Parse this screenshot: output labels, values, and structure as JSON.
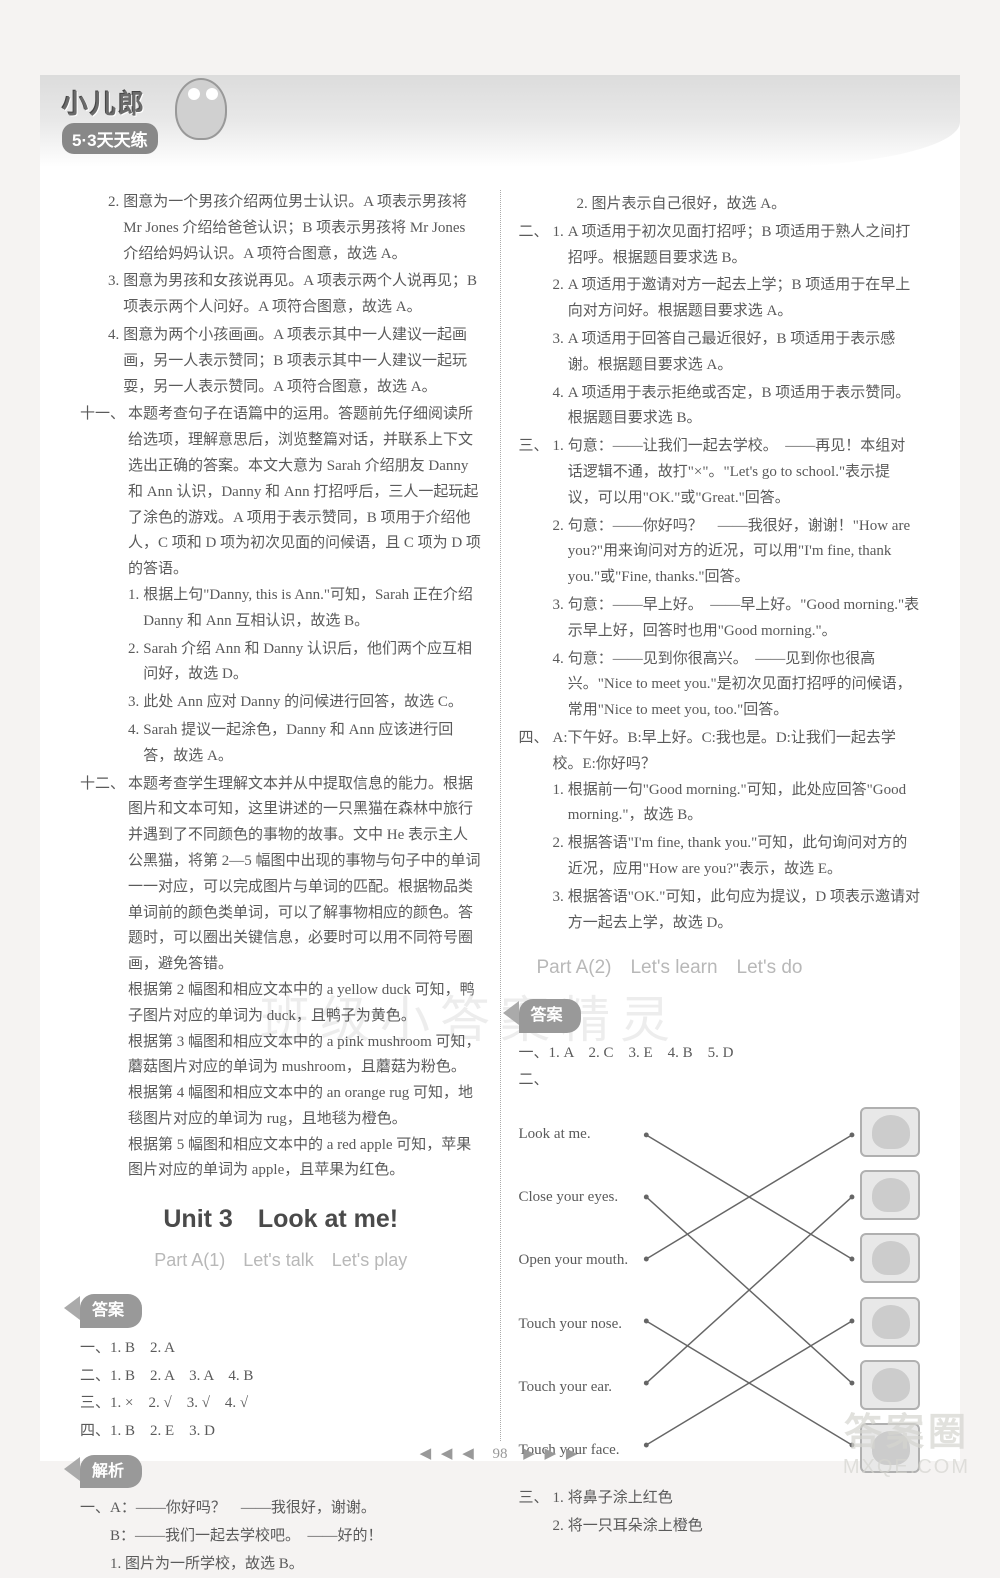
{
  "brand": {
    "top": "小儿郎",
    "bottom": "5·3天天练"
  },
  "page_number": "98",
  "watermark": {
    "main": "答案圈",
    "url": "MXQE.COM",
    "mid": "班级小答案精灵"
  },
  "left_col": {
    "items_first": [
      {
        "n": "2.",
        "t": "图意为一个男孩介绍两位男士认识。A 项表示男孩将 Mr Jones 介绍给爸爸认识；B 项表示男孩将 Mr Jones 介绍给妈妈认识。A 项符合图意，故选 A。"
      },
      {
        "n": "3.",
        "t": "图意为男孩和女孩说再见。A 项表示两个人说再见；B 项表示两个人问好。A 项符合图意，故选 A。"
      },
      {
        "n": "4.",
        "t": "图意为两个小孩画画。A 项表示其中一人建议一起画画，另一人表示赞同；B 项表示其中一人建议一起玩耍，另一人表示赞同。A 项符合图意，故选 A。"
      }
    ],
    "eleven": {
      "label": "十一、",
      "intro": "本题考查句子在语篇中的运用。答题前先仔细阅读所给选项，理解意思后，浏览整篇对话，并联系上下文选出正确的答案。本文大意为 Sarah 介绍朋友 Danny 和 Ann 认识，Danny 和 Ann 打招呼后，三人一起玩起了涂色的游戏。A 项用于表示赞同，B 项用于介绍他人，C 项和 D 项为初次见面的问候语，且 C 项为 D 项的答语。",
      "subs": [
        {
          "n": "1.",
          "t": "根据上句\"Danny, this is Ann.\"可知，Sarah 正在介绍 Danny 和 Ann 互相认识，故选 B。"
        },
        {
          "n": "2.",
          "t": "Sarah 介绍 Ann 和 Danny 认识后，他们两个应互相问好，故选 D。"
        },
        {
          "n": "3.",
          "t": "此处 Ann 应对 Danny 的问候进行回答，故选 C。"
        },
        {
          "n": "4.",
          "t": "Sarah 提议一起涂色，Danny 和 Ann 应该进行回答，故选 A。"
        }
      ]
    },
    "twelve": {
      "label": "十二、",
      "intro": "本题考查学生理解文本并从中提取信息的能力。根据图片和文本可知，这里讲述的一只黑猫在森林中旅行并遇到了不同颜色的事物的故事。文中 He 表示主人公黑猫，将第 2—5 幅图中出现的事物与句子中的单词一一对应，可以完成图片与单词的匹配。根据物品类单词前的颜色类单词，可以了解事物相应的颜色。答题时，可以圈出关键信息，必要时可以用不同符号圈画，避免答错。",
      "paras": [
        "根据第 2 幅图和相应文本中的 a yellow duck 可知，鸭子图片对应的单词为 duck，且鸭子为黄色。",
        "根据第 3 幅图和相应文本中的 a pink mushroom 可知，蘑菇图片对应的单词为 mushroom，且蘑菇为粉色。",
        "根据第 4 幅图和相应文本中的 an orange rug 可知，地毯图片对应的单词为 rug，且地毯为橙色。",
        "根据第 5 幅图和相应文本中的 a red apple 可知，苹果图片对应的单词为 apple，且苹果为红色。"
      ]
    },
    "unit_heading": "Unit 3　Look at me!",
    "part_heading": "Part A(1)　Let's talk　Let's play",
    "pill_answers": "答案",
    "answers": [
      "一、1. B　2. A",
      "二、1. B　2. A　3. A　4. B",
      "三、1. ×　2. √　3. √　4. √",
      "四、1. B　2. E　3. D"
    ],
    "pill_analysis": "解析",
    "analysis": [
      "一、A：——你好吗？　——我很好，谢谢。",
      "　　B：——我们一起去学校吧。　——好的！",
      "　　1. 图片为一所学校，故选 B。"
    ]
  },
  "right_col": {
    "top_line": "　　2. 图片表示自己很好，故选 A。",
    "two": {
      "label": "二、",
      "items": [
        {
          "n": "1.",
          "t": "A 项适用于初次见面打招呼；B 项适用于熟人之间打招呼。根据题目要求选 B。"
        },
        {
          "n": "2.",
          "t": "A 项适用于邀请对方一起去上学；B 项适用于在早上向对方问好。根据题目要求选 A。"
        },
        {
          "n": "3.",
          "t": "A 项适用于回答自己最近很好，B 项适用于表示感谢。根据题目要求选 A。"
        },
        {
          "n": "4.",
          "t": "A 项适用于表示拒绝或否定，B 项适用于表示赞同。根据题目要求选 B。"
        }
      ]
    },
    "three": {
      "label": "三、",
      "items": [
        {
          "n": "1.",
          "t": "句意：——让我们一起去学校。　——再见！本组对话逻辑不通，故打\"×\"。\"Let's go to school.\"表示提议，可以用\"OK.\"或\"Great.\"回答。"
        },
        {
          "n": "2.",
          "t": "句意：——你好吗？　——我很好，谢谢！\"How are you?\"用来询问对方的近况，可以用\"I'm fine, thank you.\"或\"Fine, thanks.\"回答。"
        },
        {
          "n": "3.",
          "t": "句意：——早上好。　——早上好。\"Good morning.\"表示早上好，回答时也用\"Good morning.\"。"
        },
        {
          "n": "4.",
          "t": "句意：——见到你很高兴。　——见到你也很高兴。\"Nice to meet you.\"是初次见面打招呼的问候语，常用\"Nice to meet you, too.\"回答。"
        }
      ]
    },
    "four": {
      "label": "四、",
      "head": "A:下午好。B:早上好。C:我也是。D:让我们一起去学校。E:你好吗？",
      "items": [
        {
          "n": "1.",
          "t": "根据前一句\"Good morning.\"可知，此处应回答\"Good morning.\"，故选 B。"
        },
        {
          "n": "2.",
          "t": "根据答语\"I'm fine, thank you.\"可知，此句询问对方的近况，应用\"How are you?\"表示，故选 E。"
        },
        {
          "n": "3.",
          "t": "根据答语\"OK.\"可知，此句应为提议，D 项表示邀请对方一起去上学，故选 D。"
        }
      ]
    },
    "part_heading": "Part A(2)　Let's learn　Let's do",
    "pill_answers": "答案",
    "answer_line1": "一、1. A　2. C　3. E　4. B　5. D",
    "answer_line2_label": "二、",
    "matching": {
      "left": [
        "Look at me.",
        "Close your eyes.",
        "Open your mouth.",
        "Touch your nose.",
        "Touch your ear.",
        "Touch your face."
      ],
      "edges": [
        [
          0,
          2
        ],
        [
          1,
          4
        ],
        [
          2,
          0
        ],
        [
          3,
          5
        ],
        [
          4,
          1
        ],
        [
          5,
          3
        ]
      ]
    },
    "three_bottom": {
      "label": "三、",
      "items": [
        {
          "n": "1.",
          "t": "将鼻子涂上红色"
        },
        {
          "n": "2.",
          "t": "将一只耳朵涂上橙色"
        }
      ]
    }
  },
  "colors": {
    "text": "#5a5a5a",
    "light_text": "#b8b8b8",
    "pill_bg": "#999999",
    "line": "#666666"
  }
}
